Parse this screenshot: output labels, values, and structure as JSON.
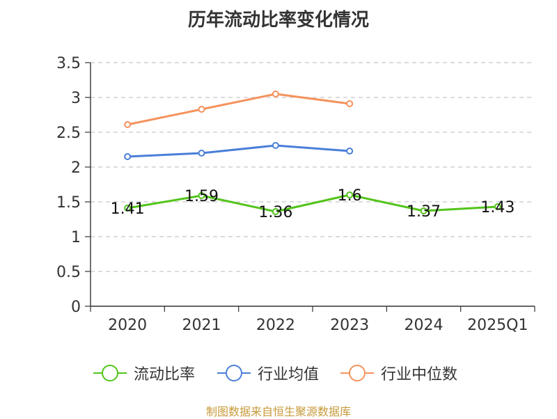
{
  "chart_data": {
    "type": "line",
    "title": "历年流动比率变化情况",
    "categories": [
      "2020",
      "2021",
      "2022",
      "2023",
      "2024",
      "2025Q1"
    ],
    "ylim": [
      0,
      3.5
    ],
    "yticks": [
      "0",
      "0.5",
      "1",
      "1.5",
      "2",
      "2.5",
      "3",
      "3.5"
    ],
    "grid": true,
    "legend_position": "bottom",
    "series": [
      {
        "name": "流动比率",
        "color": "#52c41a",
        "values": [
          1.41,
          1.59,
          1.36,
          1.6,
          1.37,
          1.43
        ],
        "labels": [
          "1.41",
          "1.59",
          "1.36",
          "1.6",
          "1.37",
          "1.43"
        ]
      },
      {
        "name": "行业均值",
        "color": "#4a7fd8",
        "values": [
          2.15,
          2.2,
          2.31,
          2.23,
          null,
          null
        ]
      },
      {
        "name": "行业中位数",
        "color": "#f5925c",
        "values": [
          2.61,
          2.83,
          3.05,
          2.91,
          null,
          null
        ]
      }
    ]
  },
  "source": "制图数据来自恒生聚源数据库"
}
